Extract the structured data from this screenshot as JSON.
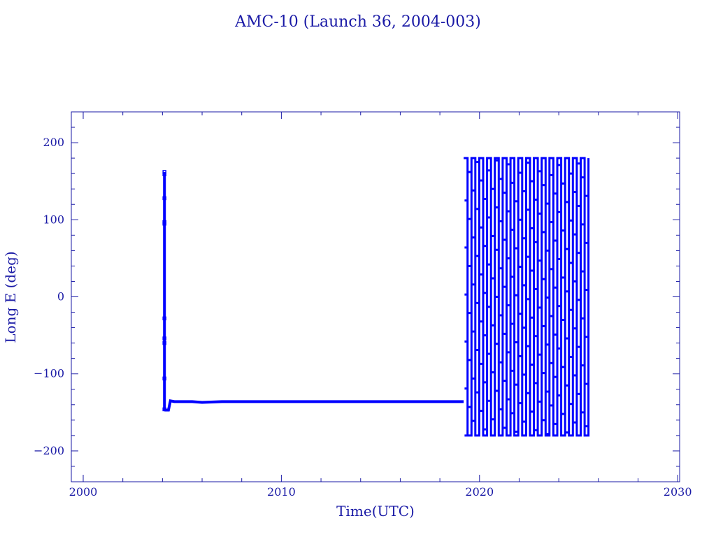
{
  "chart_data": {
    "type": "line",
    "title": "AMC-10 (Launch 36, 2004-003)",
    "xlabel": "Time(UTC)",
    "ylabel": "Long E (deg)",
    "xlim": [
      1999.4,
      2030.1
    ],
    "ylim": [
      -240,
      240
    ],
    "x_ticks": [
      2000,
      2010,
      2020,
      2030
    ],
    "x_tick_labels": [
      "2000",
      "2010",
      "2020",
      "2030"
    ],
    "y_ticks": [
      -200,
      -100,
      0,
      100,
      200
    ],
    "y_tick_labels": [
      "−200",
      "−100",
      "0",
      "100",
      "200"
    ],
    "grid": false,
    "legend": "none",
    "color": "#0000ff",
    "axis_color": "#1a1aa6",
    "series": [
      {
        "segments": [
          {
            "kind": "points",
            "x": [
              2004.1,
              2004.1,
              2004.1,
              2004.1,
              2004.1,
              2004.1,
              2004.1,
              2004.1,
              2004.1,
              2004.1
            ],
            "y": [
              162,
              159,
              128,
              97,
              95,
              -28,
              -54,
              -60,
              -106,
              -146
            ]
          },
          {
            "kind": "line",
            "x": [
              2004.1,
              2004.1
            ],
            "y": [
              162,
              -147
            ]
          },
          {
            "kind": "line",
            "x": [
              2004.1,
              2004.3,
              2004.4,
              2004.6,
              2005.5,
              2006,
              2007,
              2010,
              2013,
              2016,
              2019.2
            ],
            "y": [
              -147,
              -147,
              -135,
              -136,
              -136,
              -137,
              -136,
              -136,
              -136,
              -136,
              -136
            ]
          },
          {
            "kind": "drift",
            "x_start": 2019.2,
            "x_end": 2025.5,
            "y_min": -180,
            "y_max": 180,
            "cycles": 32
          }
        ]
      }
    ]
  }
}
